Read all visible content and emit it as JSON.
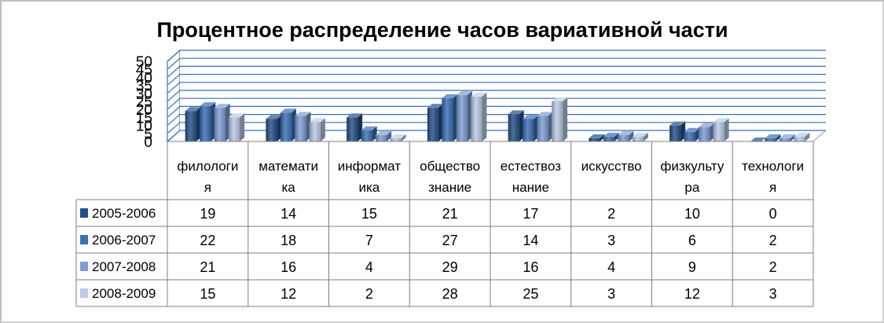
{
  "chart_data": {
    "type": "bar",
    "title": "Процентное распределение часов вариативной части",
    "xlabel": "",
    "ylabel": "",
    "ylim": [
      0,
      50
    ],
    "yticks": [
      "0",
      "5",
      "10",
      "15",
      "20",
      "25",
      "30",
      "35",
      "40",
      "45",
      "50"
    ],
    "categories": [
      [
        "филологи",
        "я"
      ],
      [
        "математи",
        "ка"
      ],
      [
        "информат",
        "ика"
      ],
      [
        "общество",
        "знание"
      ],
      [
        "естествоз",
        "нание"
      ],
      [
        "искусство"
      ],
      [
        "физкульту",
        "ра"
      ],
      [
        "технологи",
        "я"
      ]
    ],
    "series": [
      {
        "name": "2005-2006",
        "color": "#254F86",
        "values": [
          19,
          14,
          15,
          21,
          17,
          2,
          10,
          0
        ]
      },
      {
        "name": "2006-2007",
        "color": "#3B6FB6",
        "values": [
          22,
          18,
          7,
          27,
          14,
          3,
          6,
          2
        ]
      },
      {
        "name": "2007-2008",
        "color": "#7E9ED3",
        "values": [
          21,
          16,
          4,
          29,
          16,
          4,
          9,
          2
        ]
      },
      {
        "name": "2008-2009",
        "color": "#BACBE6",
        "values": [
          15,
          12,
          2,
          28,
          25,
          3,
          12,
          3
        ]
      }
    ],
    "grid": true,
    "legend": "left, inside data table",
    "data_table": true
  },
  "colors": {
    "gridline": "#3B6FB6",
    "wall_border": "#3B6FB6",
    "table_border": "#7f7f7f"
  }
}
